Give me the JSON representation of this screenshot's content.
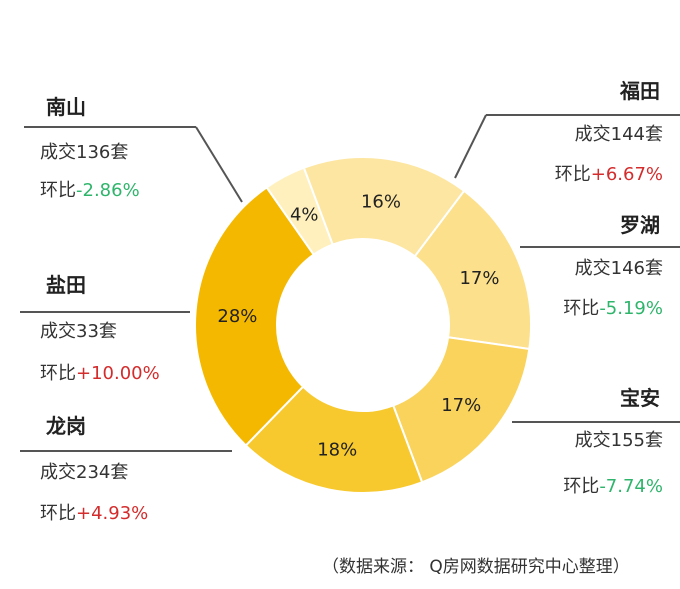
{
  "chart_data": {
    "type": "pie",
    "style": "donut",
    "categories": [
      "福田",
      "罗湖",
      "宝安",
      "龙岗",
      "盐田",
      "南山"
    ],
    "values": [
      17,
      17,
      18,
      28,
      4,
      16
    ],
    "value_labels": [
      "17%",
      "17%",
      "18%",
      "28%",
      "4%",
      "16%"
    ],
    "colors": [
      "#fce08b",
      "#fad35c",
      "#f7c92e",
      "#f5b800",
      "#fff0be",
      "#fde6a1"
    ],
    "start_angle_deg": 37,
    "district_details": [
      {
        "name": "福田",
        "deals": "成交144套",
        "mom_prefix": "环比",
        "mom_value": "+6.67%",
        "mom_color": "#d42c2c"
      },
      {
        "name": "罗湖",
        "deals": "成交146套",
        "mom_prefix": "环比",
        "mom_value": "-5.19%",
        "mom_color": "#2fb56b"
      },
      {
        "name": "宝安",
        "deals": "成交155套",
        "mom_prefix": "环比",
        "mom_value": "-7.74%",
        "mom_color": "#2fb56b"
      },
      {
        "name": "龙岗",
        "deals": "成交234套",
        "mom_prefix": "环比",
        "mom_value": "+4.93%",
        "mom_color": "#d42c2c"
      },
      {
        "name": "盐田",
        "deals": "成交33套",
        "mom_prefix": "环比",
        "mom_value": "+10.00%",
        "mom_color": "#d42c2c"
      },
      {
        "name": "南山",
        "deals": "成交136套",
        "mom_prefix": "环比",
        "mom_value": "-2.86%",
        "mom_color": "#2fb56b"
      }
    ],
    "legend": "none",
    "grid": false
  },
  "source_note": "（数据来源： Q房网数据研究中心整理）"
}
